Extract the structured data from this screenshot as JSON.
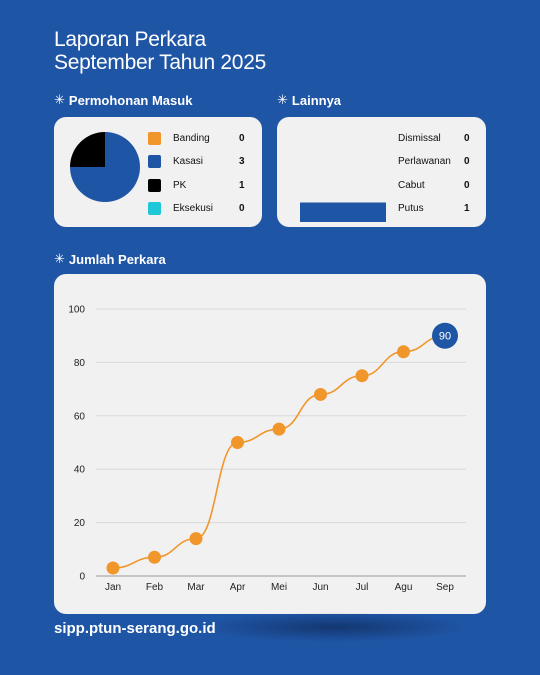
{
  "header": {
    "title_line1": "Laporan Perkara",
    "title_line2": "September Tahun 2025"
  },
  "sections": {
    "permohonan": "Permohonan Masuk",
    "lainnya": "Lainnya",
    "jumlah": "Jumlah Perkara"
  },
  "colors": {
    "background": "#1f55a5",
    "banding": "#f0962a",
    "kasasi": "#1f55a5",
    "pk": "#000000",
    "eksekusi": "#1ec8d8",
    "line": "#f0962a",
    "highlight": "#1f55a5"
  },
  "permohonan": [
    {
      "label": "Banding",
      "value": "0"
    },
    {
      "label": "Kasasi",
      "value": "3"
    },
    {
      "label": "PK",
      "value": "1"
    },
    {
      "label": "Eksekusi",
      "value": "0"
    }
  ],
  "lainnya": [
    {
      "label": "Dismissal",
      "value": "0"
    },
    {
      "label": "Perlawanan",
      "value": "0"
    },
    {
      "label": "Cabut",
      "value": "0"
    },
    {
      "label": "Putus",
      "value": "1"
    }
  ],
  "footer": {
    "url": "sipp.ptun-serang.go.id"
  },
  "chart_data": [
    {
      "type": "pie",
      "categories": [
        "Banding",
        "Kasasi",
        "PK",
        "Eksekusi"
      ],
      "values": [
        0,
        3,
        1,
        0
      ]
    },
    {
      "type": "bar",
      "categories": [
        "Dismissal",
        "Perlawanan",
        "Cabut",
        "Putus"
      ],
      "values": [
        0,
        0,
        0,
        1
      ]
    },
    {
      "type": "line",
      "categories": [
        "Jan",
        "Feb",
        "Mar",
        "Apr",
        "Mei",
        "Jun",
        "Jul",
        "Agu",
        "Sep"
      ],
      "values": [
        3,
        7,
        14,
        50,
        55,
        68,
        75,
        84,
        90
      ],
      "ylim": [
        0,
        100
      ],
      "yticks": [
        0,
        20,
        40,
        60,
        80,
        100
      ],
      "grid": true,
      "highlight_label": "90"
    }
  ]
}
